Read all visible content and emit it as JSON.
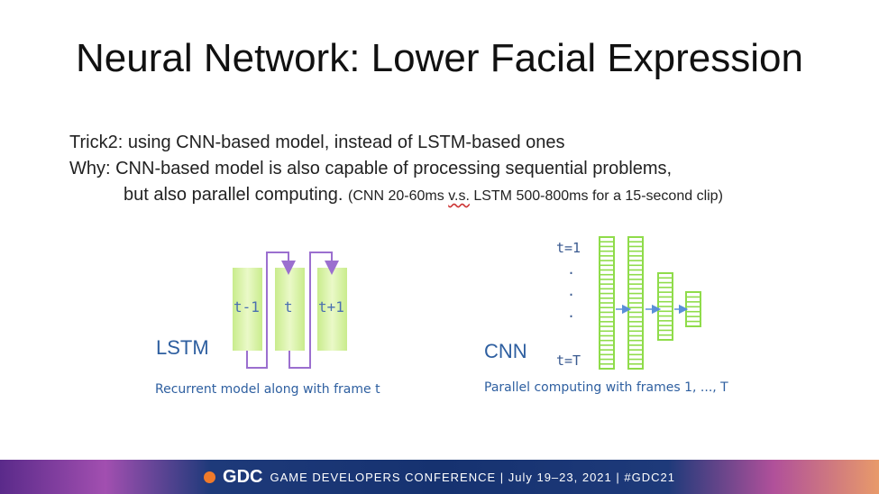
{
  "slide": {
    "title": "Neural Network: Lower Facial Expression",
    "line1": "Trick2: using CNN-based model, instead of LSTM-based ones",
    "line2": "Why: CNN-based model is also capable of processing sequential problems,",
    "line3": "but also parallel computing.",
    "note_prefix": "(CNN 20-60ms ",
    "note_vs": "v.s.",
    "note_suffix": " LSTM 500-800ms for a 15-second clip)"
  },
  "lstm": {
    "label": "LSTM",
    "boxes": [
      "t-1",
      "t",
      "t+1"
    ],
    "caption": "Recurrent model along with frame t"
  },
  "cnn": {
    "label": "CNN",
    "t_start": "t=1",
    "dots": [
      ".",
      ".",
      "."
    ],
    "t_end": "t=T",
    "caption": "Parallel computing with frames 1, ..., T"
  },
  "footer": {
    "logo": "GDC",
    "text": "GAME DEVELOPERS CONFERENCE  |  July 19–23, 2021  |  #GDC21"
  },
  "colors": {
    "box_fill": "#d9f2a6",
    "layer_green": "#8fdc4a",
    "arrow_purple": "#9b6fcf",
    "arrow_blue": "#5a8fd8"
  }
}
